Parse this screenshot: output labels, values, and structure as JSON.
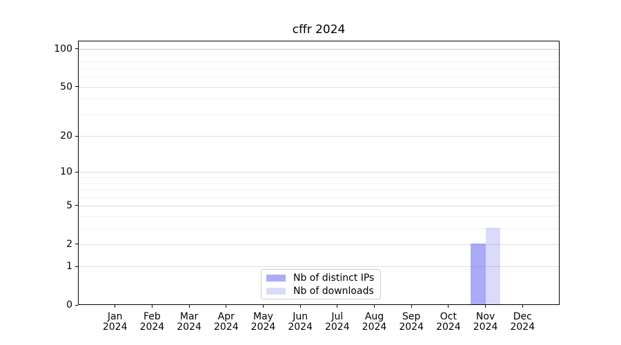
{
  "chart_data": {
    "type": "bar",
    "title": "cffr 2024",
    "categories": [
      "Jan 2024",
      "Feb 2024",
      "Mar 2024",
      "Apr 2024",
      "May 2024",
      "Jun 2024",
      "Jul 2024",
      "Aug 2024",
      "Sep 2024",
      "Oct 2024",
      "Nov 2024",
      "Dec 2024"
    ],
    "series": [
      {
        "name": "Nb of distinct IPs",
        "color": "rgba(85,85,240,0.50)",
        "color_hex": "#a9a9f7",
        "values": [
          0,
          0,
          0,
          0,
          0,
          0,
          0,
          0,
          0,
          0,
          2,
          0
        ]
      },
      {
        "name": "Nb of downloads",
        "color": "rgba(85,85,235,0.22)",
        "color_hex": "#dadaf9",
        "values": [
          0,
          0,
          0,
          0,
          0,
          0,
          0,
          0,
          0,
          0,
          3,
          0
        ]
      }
    ],
    "xlabel": "",
    "ylabel": "",
    "yscale": "log1p",
    "ylim": [
      0,
      116
    ],
    "yticks": [
      0,
      1,
      2,
      5,
      10,
      20,
      50,
      100
    ],
    "yticks_minor": [
      3,
      4,
      6,
      7,
      8,
      9,
      30,
      40,
      60,
      70,
      80,
      90
    ],
    "grid": "horizontal",
    "legend_position": "lower center",
    "colors": {
      "axis": "#000000",
      "text": "#000000",
      "grid_major": "#dedede",
      "grid_minor": "#f2f2f2",
      "grid_top": "#c6c6c6",
      "background": "#ffffff",
      "legend_border": "#cccccc"
    }
  }
}
